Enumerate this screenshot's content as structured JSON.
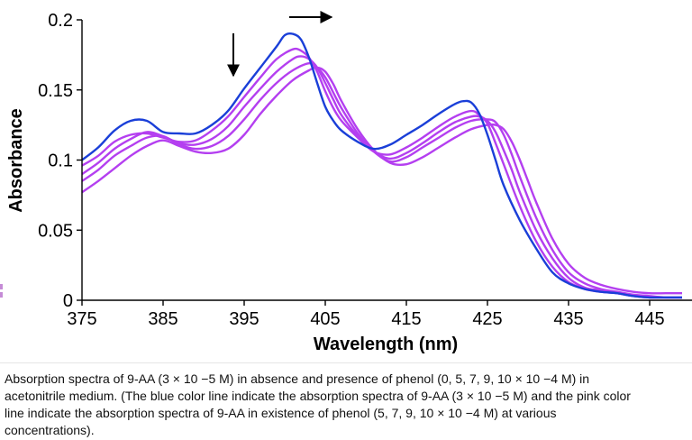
{
  "chart_data": {
    "type": "line",
    "title": "",
    "xlabel": "Wavelength (nm)",
    "ylabel": "Absorbance",
    "xlim": [
      375,
      450
    ],
    "ylim": [
      0,
      0.2
    ],
    "xticks": [
      375,
      385,
      395,
      405,
      415,
      425,
      435,
      445
    ],
    "xtick_labels": [
      "375",
      "385",
      "395",
      "405",
      "415",
      "425",
      "435",
      "445"
    ],
    "yticks": [
      0,
      0.05,
      0.1,
      0.15,
      0.2
    ],
    "ytick_labels": [
      "0",
      "0.05",
      "0.1",
      "0.15",
      "0.2"
    ],
    "grid": false,
    "legend": "none",
    "colors": {
      "blue": "#1a3fd8",
      "pink": "#b43ff0"
    },
    "annotations": [
      {
        "type": "arrow",
        "direction": "down",
        "near_wavelength": 394
      },
      {
        "type": "arrow",
        "direction": "right",
        "near_wavelength": 405
      }
    ],
    "series": [
      {
        "color": "blue",
        "x": [
          375,
          377,
          379,
          381,
          383,
          385,
          387,
          389,
          391,
          393,
          395,
          397,
          399,
          400,
          401,
          402,
          403,
          404,
          405,
          406,
          407,
          409,
          411,
          413,
          415,
          417,
          419,
          421,
          422,
          423,
          424,
          425,
          426,
          427,
          429,
          431,
          433,
          435,
          437,
          439,
          441,
          443,
          445,
          447,
          449
        ],
        "y": [
          0.1,
          0.109,
          0.121,
          0.128,
          0.128,
          0.12,
          0.119,
          0.119,
          0.125,
          0.135,
          0.151,
          0.166,
          0.181,
          0.189,
          0.19,
          0.186,
          0.173,
          0.155,
          0.138,
          0.128,
          0.121,
          0.113,
          0.108,
          0.111,
          0.118,
          0.125,
          0.133,
          0.14,
          0.142,
          0.141,
          0.133,
          0.118,
          0.1,
          0.082,
          0.057,
          0.037,
          0.02,
          0.012,
          0.008,
          0.006,
          0.005,
          0.003,
          0.002,
          0.002,
          0.002
        ]
      },
      {
        "color": "pink",
        "x": [
          375,
          377,
          379,
          381,
          383,
          385,
          387,
          389,
          391,
          393,
          395,
          397,
          399,
          401,
          402,
          403,
          404,
          405,
          406,
          407,
          409,
          411,
          413,
          415,
          417,
          419,
          421,
          423,
          424,
          425,
          426,
          427,
          429,
          431,
          433,
          435,
          437,
          439,
          441,
          443,
          445,
          447,
          449
        ],
        "y": [
          0.096,
          0.103,
          0.113,
          0.118,
          0.119,
          0.116,
          0.113,
          0.114,
          0.121,
          0.131,
          0.145,
          0.159,
          0.172,
          0.179,
          0.178,
          0.173,
          0.163,
          0.149,
          0.137,
          0.128,
          0.116,
          0.106,
          0.104,
          0.109,
          0.116,
          0.124,
          0.131,
          0.135,
          0.132,
          0.126,
          0.112,
          0.097,
          0.067,
          0.042,
          0.024,
          0.013,
          0.008,
          0.006,
          0.005,
          0.003,
          0.002,
          0.002,
          0.002
        ]
      },
      {
        "color": "pink",
        "x": [
          375,
          377,
          379,
          381,
          383,
          385,
          387,
          389,
          391,
          393,
          395,
          397,
          399,
          401,
          402,
          403,
          404,
          405,
          406,
          407,
          409,
          411,
          413,
          415,
          417,
          419,
          421,
          423,
          424,
          425,
          426,
          427,
          428,
          429,
          431,
          433,
          435,
          437,
          439,
          441,
          443,
          445,
          447,
          449
        ],
        "y": [
          0.09,
          0.098,
          0.108,
          0.115,
          0.12,
          0.117,
          0.112,
          0.111,
          0.115,
          0.124,
          0.138,
          0.151,
          0.163,
          0.172,
          0.174,
          0.172,
          0.166,
          0.155,
          0.143,
          0.132,
          0.117,
          0.106,
          0.101,
          0.105,
          0.112,
          0.12,
          0.127,
          0.131,
          0.131,
          0.128,
          0.12,
          0.107,
          0.093,
          0.077,
          0.05,
          0.03,
          0.016,
          0.009,
          0.007,
          0.005,
          0.003,
          0.002,
          0.002,
          0.002
        ]
      },
      {
        "color": "pink",
        "x": [
          375,
          377,
          379,
          381,
          383,
          385,
          387,
          389,
          391,
          393,
          395,
          397,
          399,
          401,
          403,
          404,
          405,
          406,
          407,
          409,
          411,
          413,
          415,
          417,
          419,
          421,
          423,
          425,
          426,
          427,
          428,
          429,
          431,
          433,
          435,
          437,
          439,
          441,
          443,
          445,
          447,
          449
        ],
        "y": [
          0.085,
          0.093,
          0.103,
          0.11,
          0.116,
          0.117,
          0.111,
          0.108,
          0.11,
          0.117,
          0.129,
          0.143,
          0.155,
          0.164,
          0.169,
          0.166,
          0.159,
          0.148,
          0.137,
          0.119,
          0.106,
          0.099,
          0.102,
          0.109,
          0.116,
          0.123,
          0.128,
          0.129,
          0.127,
          0.118,
          0.104,
          0.088,
          0.059,
          0.036,
          0.02,
          0.012,
          0.008,
          0.006,
          0.004,
          0.003,
          0.002,
          0.002
        ]
      },
      {
        "color": "pink",
        "x": [
          375,
          377,
          379,
          381,
          383,
          385,
          387,
          389,
          391,
          393,
          395,
          397,
          399,
          401,
          403,
          404,
          405,
          406,
          407,
          409,
          411,
          413,
          415,
          417,
          419,
          421,
          423,
          425,
          426,
          427,
          428,
          429,
          430,
          431,
          433,
          435,
          437,
          439,
          441,
          443,
          445,
          447,
          449
        ],
        "y": [
          0.077,
          0.085,
          0.094,
          0.103,
          0.11,
          0.114,
          0.11,
          0.106,
          0.105,
          0.108,
          0.118,
          0.133,
          0.146,
          0.157,
          0.164,
          0.166,
          0.163,
          0.154,
          0.142,
          0.122,
          0.107,
          0.098,
          0.097,
          0.102,
          0.109,
          0.116,
          0.122,
          0.125,
          0.125,
          0.122,
          0.113,
          0.1,
          0.085,
          0.07,
          0.044,
          0.026,
          0.016,
          0.011,
          0.008,
          0.006,
          0.005,
          0.005,
          0.005
        ]
      }
    ]
  },
  "caption": {
    "lines": [
      "Absorption spectra of 9-AA (3 × 10 −5 M) in absence and presence of phenol (0, 5, 7, 9, 10 × 10 −4 M) in",
      "acetonitrile medium. (The blue color line indicate the absorption spectra of 9-AA (3 × 10 −5 M) and the pink color",
      "line indicate the absorption spectra of 9-AA in existence of phenol (5, 7, 9, 10 × 10 −4 M) at various",
      "concentrations)."
    ]
  }
}
